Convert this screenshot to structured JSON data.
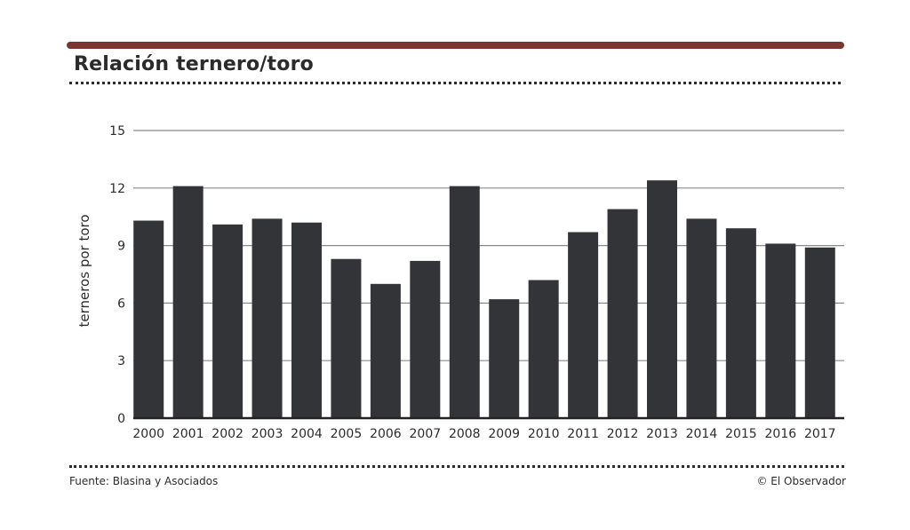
{
  "header": {
    "title": "Relación ternero/toro"
  },
  "footer": {
    "source": "Fuente: Blasina y Asociados",
    "credit": "© El Observador"
  },
  "colors": {
    "bar": "#333438",
    "accent_rule": "#7a3731",
    "grid": "#8a8a8a",
    "text": "#2b2b2b"
  },
  "chart_data": {
    "type": "bar",
    "title": "Relación ternero/toro",
    "xlabel": "",
    "ylabel": "terneros por toro",
    "ylim": [
      0,
      15
    ],
    "yticks": [
      0,
      3,
      6,
      9,
      12,
      15
    ],
    "grid": true,
    "categories": [
      "2000",
      "2001",
      "2002",
      "2003",
      "2004",
      "2005",
      "2006",
      "2007",
      "2008",
      "2009",
      "2010",
      "2011",
      "2012",
      "2013",
      "2014",
      "2015",
      "2016",
      "2017"
    ],
    "values": [
      10.3,
      12.1,
      10.1,
      10.4,
      10.2,
      8.3,
      7.0,
      8.2,
      12.1,
      6.2,
      7.2,
      9.7,
      10.9,
      12.4,
      10.4,
      9.9,
      9.1,
      8.9
    ]
  }
}
